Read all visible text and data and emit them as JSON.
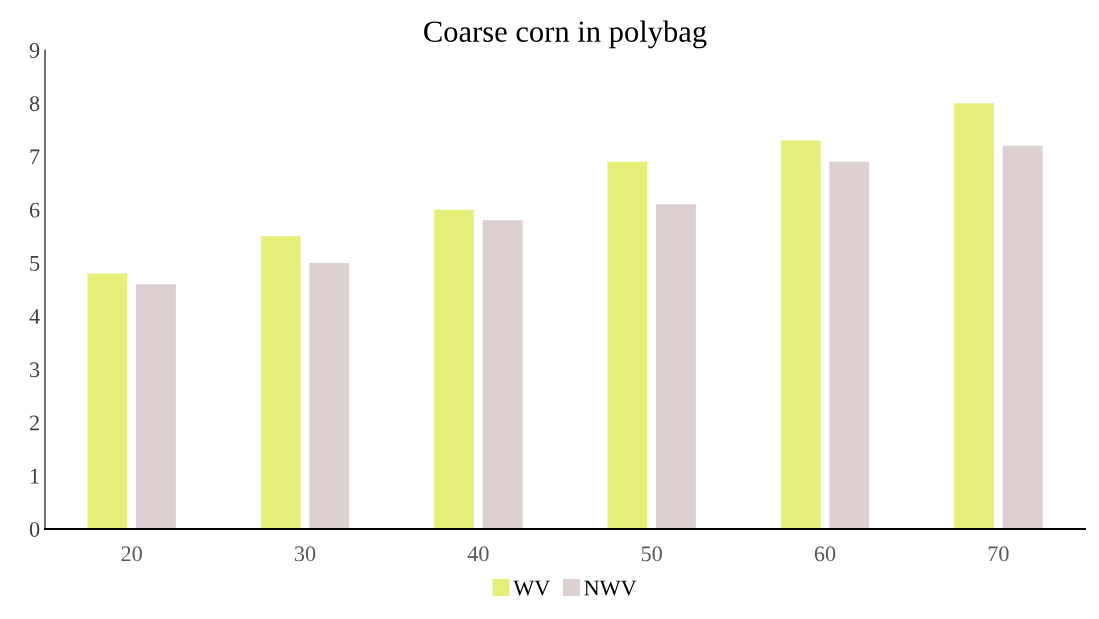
{
  "chart_data": {
    "type": "bar",
    "title": "Coarse corn in polybag",
    "categories": [
      "20",
      "30",
      "40",
      "50",
      "60",
      "70"
    ],
    "series": [
      {
        "name": "WV",
        "color": "#e6ef7a",
        "values": [
          4.8,
          5.5,
          6.0,
          6.9,
          7.3,
          8.0
        ]
      },
      {
        "name": "NWV",
        "color": "#ddd0d0",
        "values": [
          4.6,
          5.0,
          5.8,
          6.1,
          6.9,
          7.2
        ]
      }
    ],
    "ylim": [
      0,
      9
    ],
    "yticks": [
      0,
      1,
      2,
      3,
      4,
      5,
      6,
      7,
      8,
      9
    ],
    "grid": false,
    "legend": "bottom"
  }
}
